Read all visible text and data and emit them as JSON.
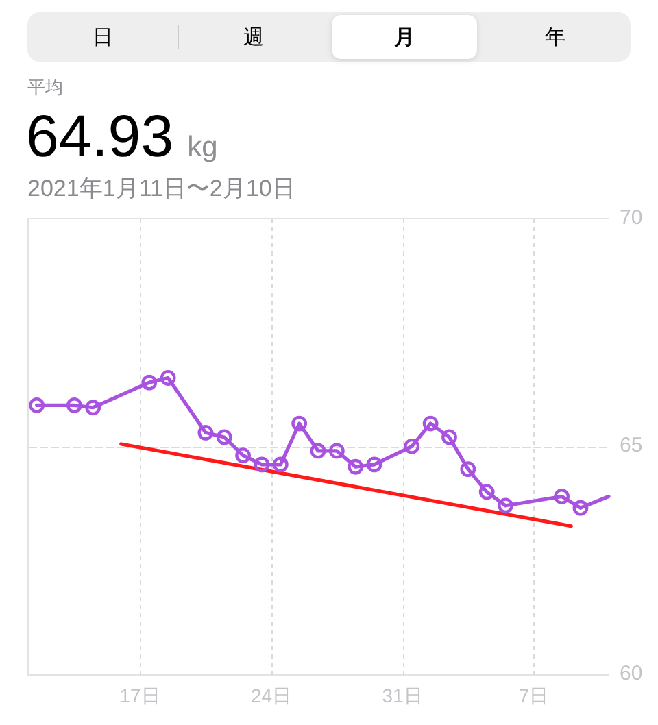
{
  "chart_data": {
    "type": "line",
    "title": "64.93 kg",
    "subtitle": "2021年1月11日〜2月10日",
    "annotations": [
      "日",
      "週",
      "月",
      "年",
      "平均"
    ],
    "marker": "circle",
    "grid": true,
    "xlim": [
      "2021-01-11",
      "2021-02-11"
    ],
    "xticks": [
      {
        "value": "2021-01-17",
        "label": "17日"
      },
      {
        "value": "2021-01-24",
        "label": "24日"
      },
      {
        "value": "2021-01-31",
        "label": "31日"
      },
      {
        "value": "2021-02-07",
        "label": "7日"
      }
    ],
    "ylim": [
      60,
      70
    ],
    "yticks": [
      60,
      65,
      70
    ],
    "series": [
      {
        "color": "#a852e0",
        "x": [
          "2021-01-11T12:00",
          "2021-01-13T12:00",
          "2021-01-14T12:00",
          "2021-01-17T12:00",
          "2021-01-18T12:00",
          "2021-01-20T12:00",
          "2021-01-21T12:00",
          "2021-01-22T12:00",
          "2021-01-23T12:00",
          "2021-01-24T12:00",
          "2021-01-25T12:00",
          "2021-01-26T12:00",
          "2021-01-27T12:00",
          "2021-01-28T12:00",
          "2021-01-29T12:00",
          "2021-01-31T12:00",
          "2021-02-01T12:00",
          "2021-02-02T12:00",
          "2021-02-03T12:00",
          "2021-02-04T12:00",
          "2021-02-05T12:00",
          "2021-02-08T12:00",
          "2021-02-09T12:00"
        ],
        "values": [
          65.9,
          65.9,
          65.85,
          66.4,
          66.5,
          65.3,
          65.2,
          64.8,
          64.6,
          64.6,
          65.5,
          64.9,
          64.9,
          64.55,
          64.6,
          65.0,
          65.5,
          65.2,
          64.5,
          64.0,
          63.7,
          63.9,
          63.65
        ]
      },
      {
        "color": "#a852e0",
        "marker": "none",
        "x": [
          "2021-02-09T12:00",
          "2021-02-11T00:00"
        ],
        "values": [
          63.65,
          63.9
        ]
      },
      {
        "color": "#ff1a1a",
        "marker": "none",
        "x": [
          "2021-01-16T00:00",
          "2021-02-09T00:00"
        ],
        "values": [
          65.05,
          63.25
        ]
      }
    ]
  }
}
